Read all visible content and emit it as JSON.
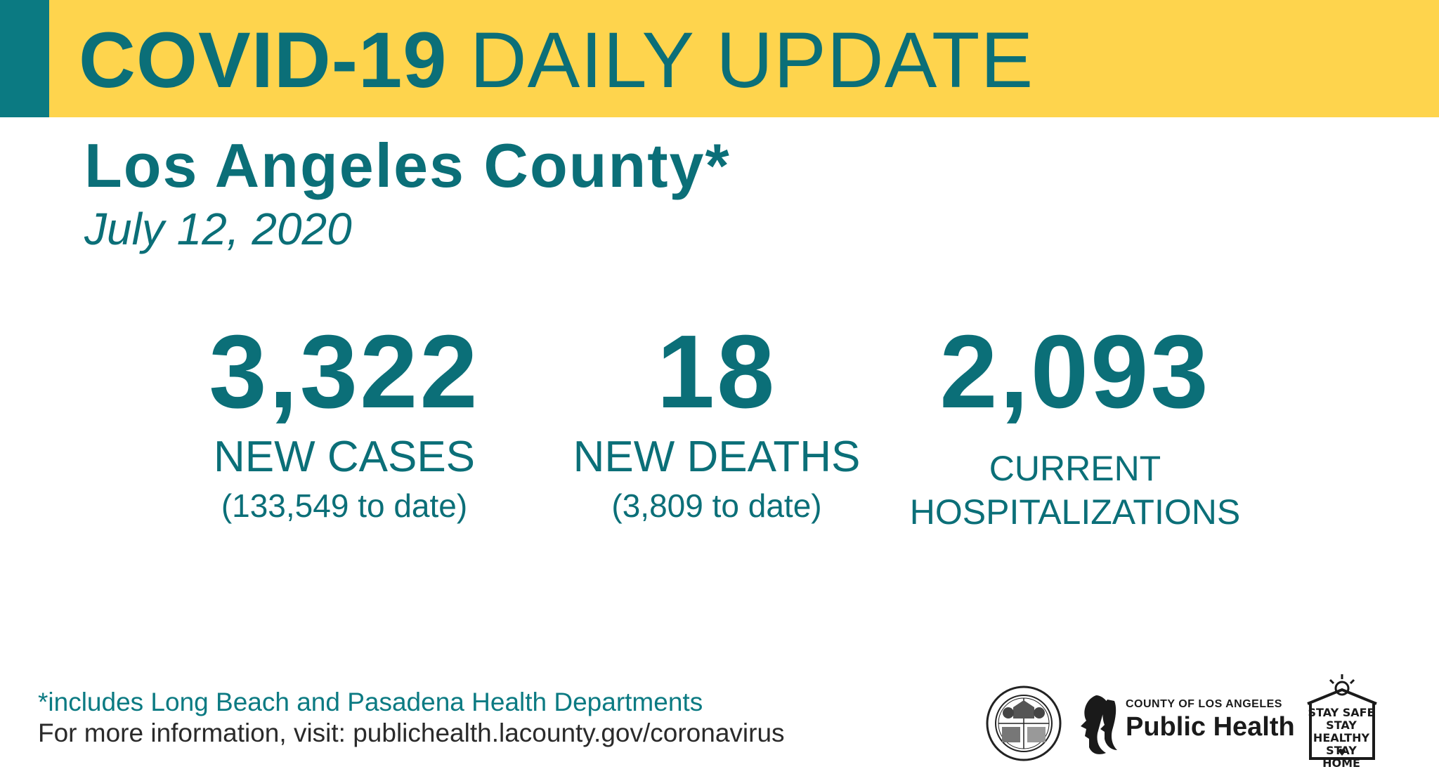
{
  "banner": {
    "title_bold": "COVID-19",
    "title_light": "DAILY UPDATE"
  },
  "region": "Los Angeles County*",
  "date": "July 12, 2020",
  "stats": {
    "cases": {
      "value": "3,322",
      "label": "NEW CASES",
      "to_date": "(133,549 to date)"
    },
    "deaths": {
      "value": "18",
      "label": "NEW DEATHS",
      "to_date": "(3,809 to date)"
    },
    "hospitalizations": {
      "value": "2,093",
      "label_line1": "CURRENT",
      "label_line2": "HOSPITALIZATIONS"
    }
  },
  "footer": {
    "footnote": "*includes Long Beach and Pasadena Health Departments",
    "more_info": "For more information, visit: publichealth.lacounty.gov/coronavirus"
  },
  "logos": {
    "public_health_small": "COUNTY OF LOS ANGELES",
    "public_health_big": "Public Health",
    "stay_line1": "STAY SAFE",
    "stay_line2": "STAY HEALTHY",
    "stay_line3": "STAY HOME"
  },
  "colors": {
    "teal": "#0b6f78",
    "yellow": "#fed44d"
  }
}
